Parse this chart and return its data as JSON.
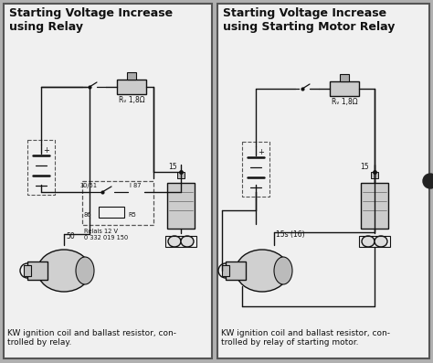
{
  "bg_color": "#b0b0b0",
  "panel_bg": "#f0f0f0",
  "panel_border": "#444444",
  "line_color": "#111111",
  "title1": "Starting Voltage Increase\nusing Relay",
  "title2": "Starting Voltage Increase\nusing Starting Motor Relay",
  "caption1": "KW ignition coil and ballast resistor, con-\ntrolled by relay.",
  "caption2": "KW ignition coil and ballast resistor, con-\ntrolled by relay of starting motor.",
  "label_rv": "Rᵥ 1,8Ω",
  "label_relay": "Relais 12 V\n0 332 019 150",
  "label_30_51": "30/51",
  "label_87": "I 87",
  "label_86": "86",
  "label_R5": "R5",
  "label_50": "50",
  "label_15": "15",
  "label_15s": "15s (16)",
  "fig_w": 4.74,
  "fig_h": 3.97,
  "dpi": 100
}
